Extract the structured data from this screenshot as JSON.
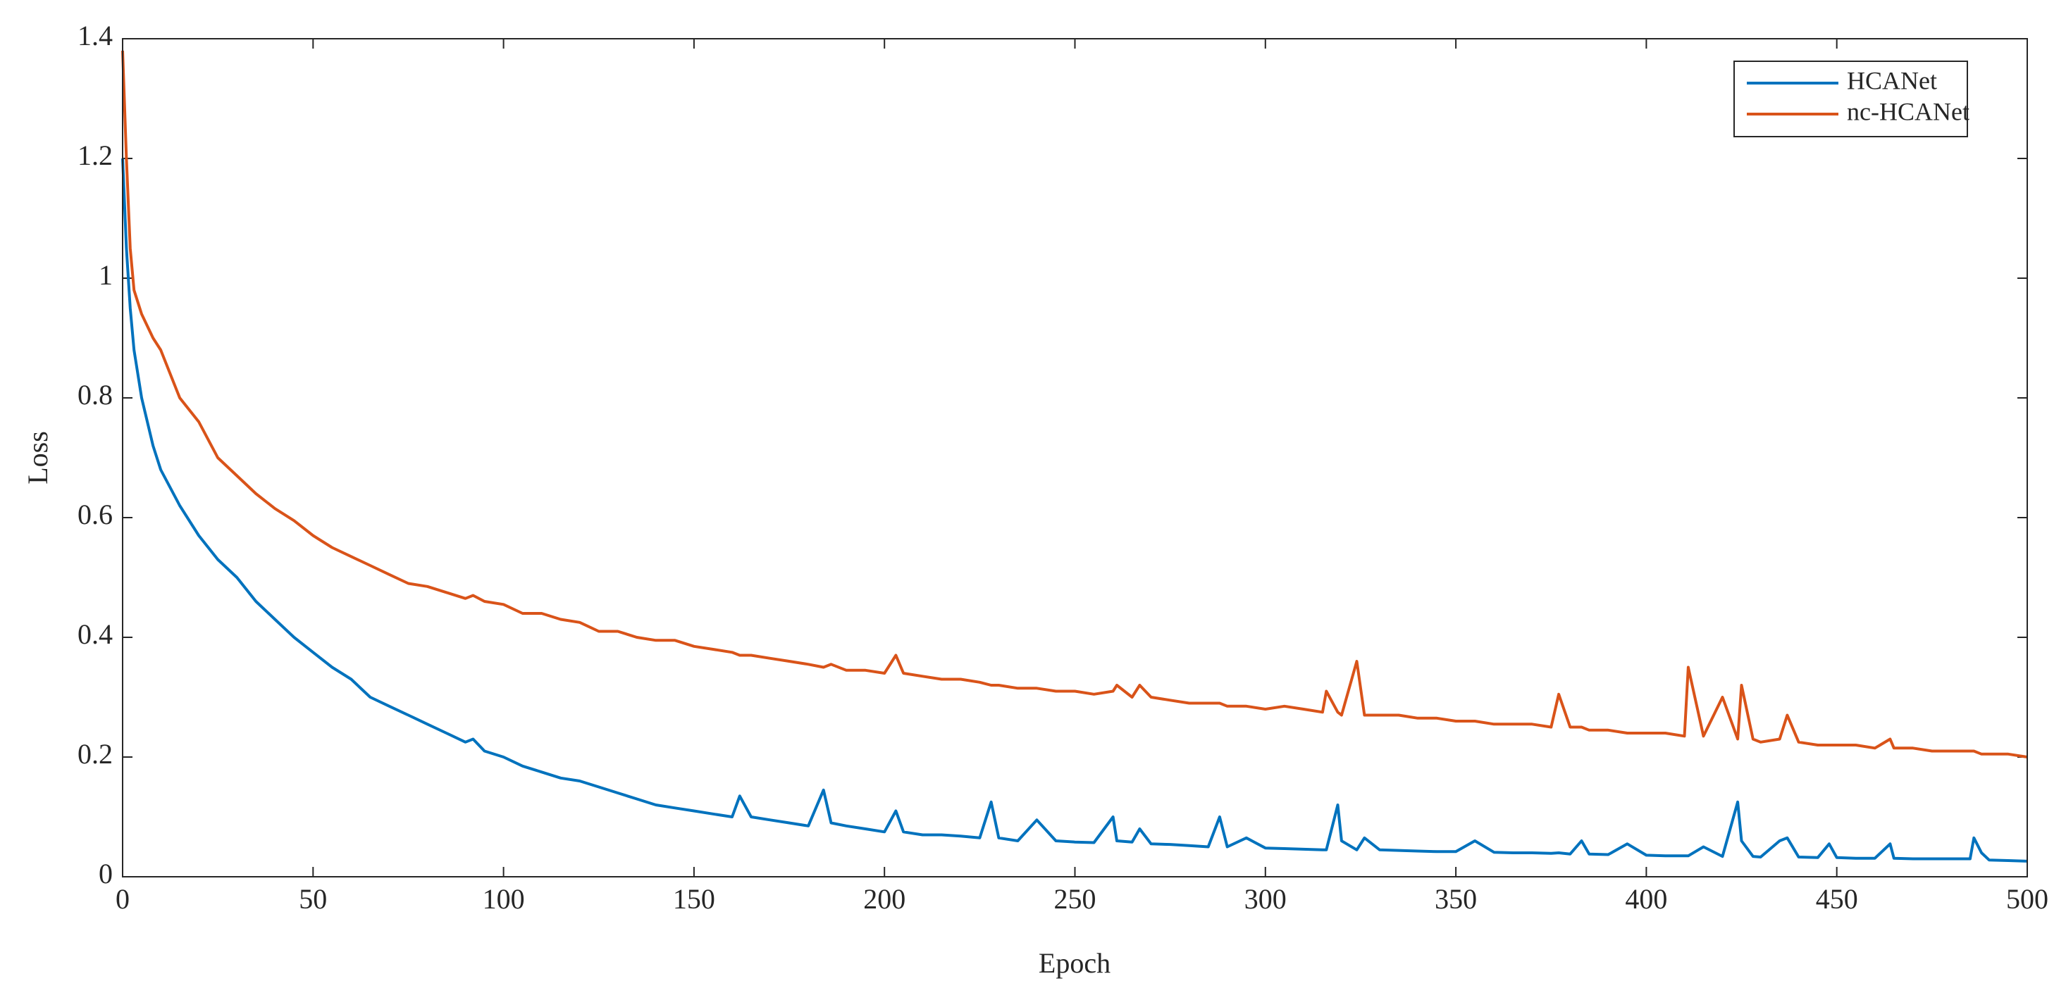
{
  "chart_data": {
    "type": "line",
    "xlabel": "Epoch",
    "ylabel": "Loss",
    "xlim": [
      0,
      500
    ],
    "xticks": [
      0,
      50,
      100,
      150,
      200,
      250,
      300,
      350,
      400,
      450,
      500
    ],
    "ylim": [
      0,
      1.4
    ],
    "yticks": [
      0,
      0.2,
      0.4,
      0.6,
      0.8,
      1,
      1.2,
      1.4
    ],
    "grid": false,
    "legend": "northeast",
    "x": [
      0,
      1,
      2,
      3,
      5,
      8,
      10,
      15,
      20,
      25,
      30,
      35,
      40,
      45,
      50,
      55,
      60,
      65,
      70,
      75,
      80,
      85,
      90,
      92,
      95,
      100,
      105,
      110,
      115,
      120,
      125,
      130,
      135,
      140,
      145,
      150,
      155,
      160,
      162,
      165,
      170,
      175,
      180,
      184,
      186,
      190,
      195,
      200,
      203,
      205,
      210,
      215,
      220,
      225,
      228,
      230,
      235,
      240,
      245,
      250,
      255,
      260,
      261,
      265,
      267,
      270,
      275,
      280,
      285,
      288,
      290,
      295,
      300,
      305,
      310,
      315,
      316,
      319,
      320,
      324,
      326,
      330,
      335,
      340,
      345,
      350,
      355,
      360,
      365,
      370,
      375,
      377,
      380,
      383,
      385,
      390,
      395,
      400,
      405,
      410,
      411,
      415,
      420,
      424,
      425,
      428,
      430,
      435,
      437,
      440,
      445,
      448,
      450,
      455,
      460,
      464,
      465,
      470,
      475,
      480,
      485,
      486,
      488,
      490,
      495,
      500
    ],
    "series": [
      {
        "name": "HCANet",
        "color": "#0072bd",
        "values": [
          1.2,
          1.05,
          0.95,
          0.88,
          0.8,
          0.72,
          0.68,
          0.62,
          0.57,
          0.53,
          0.5,
          0.46,
          0.43,
          0.4,
          0.375,
          0.35,
          0.33,
          0.3,
          0.285,
          0.27,
          0.255,
          0.24,
          0.225,
          0.23,
          0.21,
          0.2,
          0.185,
          0.175,
          0.165,
          0.16,
          0.15,
          0.14,
          0.13,
          0.12,
          0.115,
          0.11,
          0.105,
          0.1,
          0.135,
          0.1,
          0.095,
          0.09,
          0.085,
          0.145,
          0.09,
          0.085,
          0.08,
          0.075,
          0.11,
          0.075,
          0.07,
          0.07,
          0.068,
          0.065,
          0.125,
          0.065,
          0.06,
          0.095,
          0.06,
          0.058,
          0.057,
          0.1,
          0.06,
          0.058,
          0.08,
          0.055,
          0.054,
          0.052,
          0.05,
          0.1,
          0.05,
          0.065,
          0.048,
          0.047,
          0.046,
          0.045,
          0.045,
          0.12,
          0.06,
          0.045,
          0.065,
          0.045,
          0.044,
          0.043,
          0.042,
          0.042,
          0.06,
          0.041,
          0.04,
          0.04,
          0.039,
          0.04,
          0.038,
          0.06,
          0.038,
          0.037,
          0.055,
          0.036,
          0.035,
          0.035,
          0.035,
          0.05,
          0.034,
          0.125,
          0.06,
          0.034,
          0.033,
          0.06,
          0.065,
          0.033,
          0.032,
          0.055,
          0.032,
          0.031,
          0.031,
          0.055,
          0.031,
          0.03,
          0.03,
          0.03,
          0.03,
          0.065,
          0.04,
          0.028,
          0.027,
          0.026
        ]
      },
      {
        "name": "nc-HCANet",
        "color": "#d95319",
        "values": [
          1.38,
          1.2,
          1.05,
          0.98,
          0.94,
          0.9,
          0.88,
          0.8,
          0.76,
          0.7,
          0.67,
          0.64,
          0.615,
          0.595,
          0.57,
          0.55,
          0.535,
          0.52,
          0.505,
          0.49,
          0.485,
          0.475,
          0.465,
          0.47,
          0.46,
          0.455,
          0.44,
          0.44,
          0.43,
          0.425,
          0.41,
          0.41,
          0.4,
          0.395,
          0.395,
          0.385,
          0.38,
          0.375,
          0.37,
          0.37,
          0.365,
          0.36,
          0.355,
          0.35,
          0.355,
          0.345,
          0.345,
          0.34,
          0.37,
          0.34,
          0.335,
          0.33,
          0.33,
          0.325,
          0.32,
          0.32,
          0.315,
          0.315,
          0.31,
          0.31,
          0.305,
          0.31,
          0.32,
          0.3,
          0.32,
          0.3,
          0.295,
          0.29,
          0.29,
          0.29,
          0.285,
          0.285,
          0.28,
          0.285,
          0.28,
          0.275,
          0.31,
          0.275,
          0.27,
          0.36,
          0.27,
          0.27,
          0.27,
          0.265,
          0.265,
          0.26,
          0.26,
          0.255,
          0.255,
          0.255,
          0.25,
          0.305,
          0.25,
          0.25,
          0.245,
          0.245,
          0.24,
          0.24,
          0.24,
          0.235,
          0.35,
          0.235,
          0.3,
          0.23,
          0.32,
          0.23,
          0.225,
          0.23,
          0.27,
          0.225,
          0.22,
          0.22,
          0.22,
          0.22,
          0.215,
          0.23,
          0.215,
          0.215,
          0.21,
          0.21,
          0.21,
          0.21,
          0.205,
          0.205,
          0.205,
          0.2
        ]
      }
    ]
  }
}
